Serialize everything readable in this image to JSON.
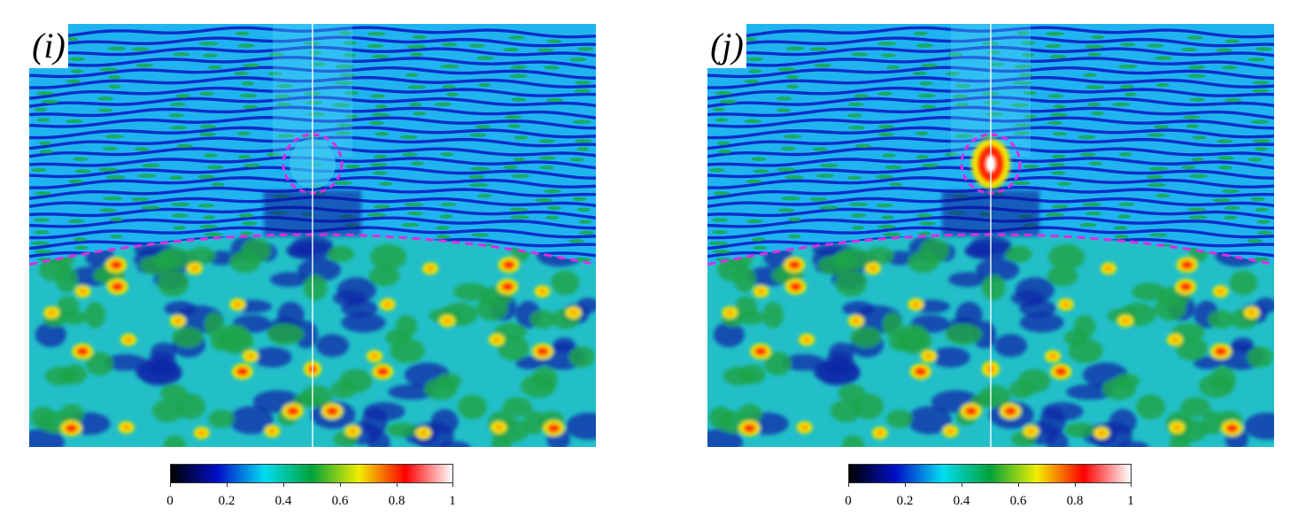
{
  "panels": [
    {
      "label": "(i)",
      "target_bright": false,
      "colorbar_ticks": [
        "0",
        "0.2",
        "0.4",
        "0.6",
        "0.8",
        "1"
      ]
    },
    {
      "label": "(j)",
      "target_bright": true,
      "colorbar_ticks": [
        "0",
        "0.2",
        "0.4",
        "0.6",
        "0.8",
        "1"
      ]
    }
  ],
  "colorbar": {
    "min": 0,
    "max": 1,
    "colors": [
      "#000000",
      "#0010c8",
      "#00dcf0",
      "#00a23a",
      "#f0ee00",
      "#ff0000",
      "#ffffff"
    ]
  },
  "overlay_colors": {
    "interface": "#e02ce0",
    "centerline": "#ffffff"
  }
}
